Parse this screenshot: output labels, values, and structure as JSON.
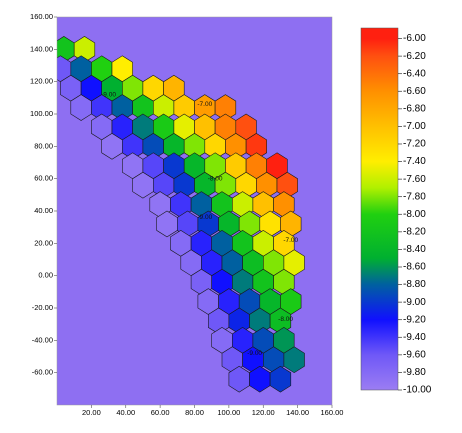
{
  "chart_data": {
    "type": "hexmap",
    "background": "#8e6ff2",
    "xlim": [
      0,
      160
    ],
    "ylim": [
      -80,
      160
    ],
    "xticks": [
      {
        "value": 20,
        "label": "20.00"
      },
      {
        "value": 40,
        "label": "40.00"
      },
      {
        "value": 60,
        "label": "60.00"
      },
      {
        "value": 80,
        "label": "80.00"
      },
      {
        "value": 100,
        "label": "100.00"
      },
      {
        "value": 120,
        "label": "120.00"
      },
      {
        "value": 140,
        "label": "140.00"
      },
      {
        "value": 160,
        "label": "160.00"
      }
    ],
    "yticks": [
      {
        "value": -60,
        "label": "-60.00"
      },
      {
        "value": -40,
        "label": "-40.00"
      },
      {
        "value": -20,
        "label": "-20.00"
      },
      {
        "value": 0,
        "label": "0.00"
      },
      {
        "value": 20,
        "label": "20.00"
      },
      {
        "value": 40,
        "label": "40.00"
      },
      {
        "value": 60,
        "label": "60.00"
      },
      {
        "value": 80,
        "label": "80.00"
      },
      {
        "value": 100,
        "label": "100.00"
      },
      {
        "value": 120,
        "label": "120.00"
      },
      {
        "value": 140,
        "label": "140.00"
      },
      {
        "value": 160,
        "label": "160.00"
      }
    ],
    "cell_dx": 12,
    "rows": [
      {
        "y": 140,
        "x0": 4,
        "values": [
          -8.2,
          -7.6
        ]
      },
      {
        "y": 128,
        "x0": 2,
        "values": [
          -9.6,
          -8.8,
          -8.0,
          -7.4
        ]
      },
      {
        "y": 116,
        "x0": 8,
        "values": [
          -9.7,
          -9.2,
          -8.5,
          -7.8,
          -7.2,
          -6.9
        ]
      },
      {
        "y": 104,
        "x0": 14,
        "values": [
          -9.8,
          -9.4,
          -8.8,
          -8.2,
          -7.6,
          -7.1,
          -6.7,
          -6.5
        ]
      },
      {
        "y": 92,
        "x0": 26,
        "values": [
          -9.8,
          -9.3,
          -8.7,
          -8.1,
          -7.5,
          -7.0,
          -6.5,
          -6.2
        ]
      },
      {
        "y": 80,
        "x0": 32,
        "values": [
          -9.9,
          -9.4,
          -8.9,
          -8.4,
          -7.8,
          -7.2,
          -6.6,
          -6.1
        ]
      },
      {
        "y": 68,
        "x0": 44,
        "values": [
          -9.9,
          -9.5,
          -9.0,
          -8.4,
          -7.8,
          -7.1,
          -6.5,
          -6.0
        ]
      },
      {
        "y": 56,
        "x0": 50,
        "values": [
          -9.9,
          -9.5,
          -9.0,
          -8.4,
          -7.8,
          -7.2,
          -6.6,
          -6.2
        ]
      },
      {
        "y": 44,
        "x0": 60,
        "values": [
          -9.9,
          -9.4,
          -8.8,
          -8.2,
          -7.6,
          -7.0,
          -6.6
        ]
      },
      {
        "y": 32,
        "x0": 64,
        "values": [
          -9.9,
          -9.5,
          -9.0,
          -8.4,
          -7.8,
          -7.3,
          -6.9
        ]
      },
      {
        "y": 20,
        "x0": 72,
        "values": [
          -9.8,
          -9.3,
          -8.8,
          -8.2,
          -7.6,
          -7.2
        ]
      },
      {
        "y": 8,
        "x0": 78,
        "values": [
          -9.8,
          -9.3,
          -8.8,
          -8.3,
          -7.8,
          -7.5
        ]
      },
      {
        "y": -4,
        "x0": 84,
        "values": [
          -9.7,
          -9.2,
          -8.7,
          -8.2,
          -7.8
        ]
      },
      {
        "y": -16,
        "x0": 88,
        "values": [
          -9.8,
          -9.3,
          -8.9,
          -8.4,
          -8.1
        ]
      },
      {
        "y": -28,
        "x0": 94,
        "values": [
          -9.6,
          -9.1,
          -8.7,
          -8.3
        ]
      },
      {
        "y": -40,
        "x0": 96,
        "values": [
          -9.8,
          -9.3,
          -8.9,
          -8.6
        ]
      },
      {
        "y": -52,
        "x0": 102,
        "values": [
          -9.6,
          -9.2,
          -8.9,
          -8.7
        ]
      },
      {
        "y": -64,
        "x0": 106,
        "values": [
          -9.6,
          -9.2,
          -9.0
        ]
      }
    ],
    "contour_labels": [
      {
        "text": "-9.00",
        "x": 30,
        "y": 112
      },
      {
        "text": "-7.00",
        "x": 86,
        "y": 106
      },
      {
        "text": "-8.00",
        "x": 92,
        "y": 60
      },
      {
        "text": "-9.00",
        "x": 86,
        "y": 36
      },
      {
        "text": "-7.00",
        "x": 136,
        "y": 22
      },
      {
        "text": "-8.00",
        "x": 133,
        "y": -27
      },
      {
        "text": "-9.00",
        "x": 115,
        "y": -48
      }
    ],
    "colormap": [
      [
        -10,
        "#9b7df3"
      ],
      [
        -9.6,
        "#6f58f7"
      ],
      [
        -9.2,
        "#1010ff"
      ],
      [
        -8.8,
        "#0060a0"
      ],
      [
        -8.5,
        "#00b030"
      ],
      [
        -8.0,
        "#20d010"
      ],
      [
        -7.7,
        "#b0f000"
      ],
      [
        -7.4,
        "#ffee00"
      ],
      [
        -7.0,
        "#ffc000"
      ],
      [
        -6.6,
        "#ff9000"
      ],
      [
        -6.2,
        "#ff5010"
      ],
      [
        -6.0,
        "#ff2010"
      ]
    ],
    "clim": [
      -10,
      -5.88
    ],
    "cticks": [
      {
        "value": -6.0,
        "label": "-6.00"
      },
      {
        "value": -6.2,
        "label": "-6.20"
      },
      {
        "value": -6.4,
        "label": "-6.40"
      },
      {
        "value": -6.6,
        "label": "-6.60"
      },
      {
        "value": -6.8,
        "label": "-6.80"
      },
      {
        "value": -7.0,
        "label": "-7.00"
      },
      {
        "value": -7.2,
        "label": "-7.20"
      },
      {
        "value": -7.4,
        "label": "-7.40"
      },
      {
        "value": -7.6,
        "label": "-7.60"
      },
      {
        "value": -7.8,
        "label": "-7.80"
      },
      {
        "value": -8.0,
        "label": "-8.00"
      },
      {
        "value": -8.2,
        "label": "-8.20"
      },
      {
        "value": -8.4,
        "label": "-8.40"
      },
      {
        "value": -8.6,
        "label": "-8.60"
      },
      {
        "value": -8.8,
        "label": "-8.80"
      },
      {
        "value": -9.0,
        "label": "-9.00"
      },
      {
        "value": -9.2,
        "label": "-9.20"
      },
      {
        "value": -9.4,
        "label": "-9.40"
      },
      {
        "value": -9.6,
        "label": "-9.60"
      },
      {
        "value": -9.8,
        "label": "-9.80"
      },
      {
        "value": -10.0,
        "label": "-10.00"
      }
    ]
  }
}
